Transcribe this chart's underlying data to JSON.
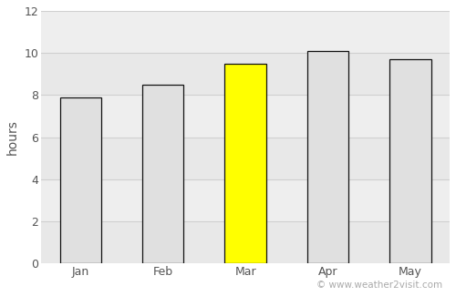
{
  "categories": [
    "Jan",
    "Feb",
    "Mar",
    "Apr",
    "May"
  ],
  "values": [
    7.9,
    8.5,
    9.5,
    10.1,
    9.7
  ],
  "bar_colors": [
    "#e0e0e0",
    "#e0e0e0",
    "#ffff00",
    "#e0e0e0",
    "#e0e0e0"
  ],
  "bar_edgecolors": [
    "#111111",
    "#111111",
    "#111111",
    "#111111",
    "#111111"
  ],
  "ylabel": "hours",
  "ylim": [
    0,
    12
  ],
  "yticks": [
    0,
    2,
    4,
    6,
    8,
    10,
    12
  ],
  "grid_color": "#d0d0d0",
  "background_color": "#ffffff",
  "plot_bg_color": "#eeeeee",
  "watermark": "© www.weather2visit.com",
  "watermark_color": "#aaaaaa",
  "watermark_fontsize": 7.5,
  "bar_width": 0.5
}
